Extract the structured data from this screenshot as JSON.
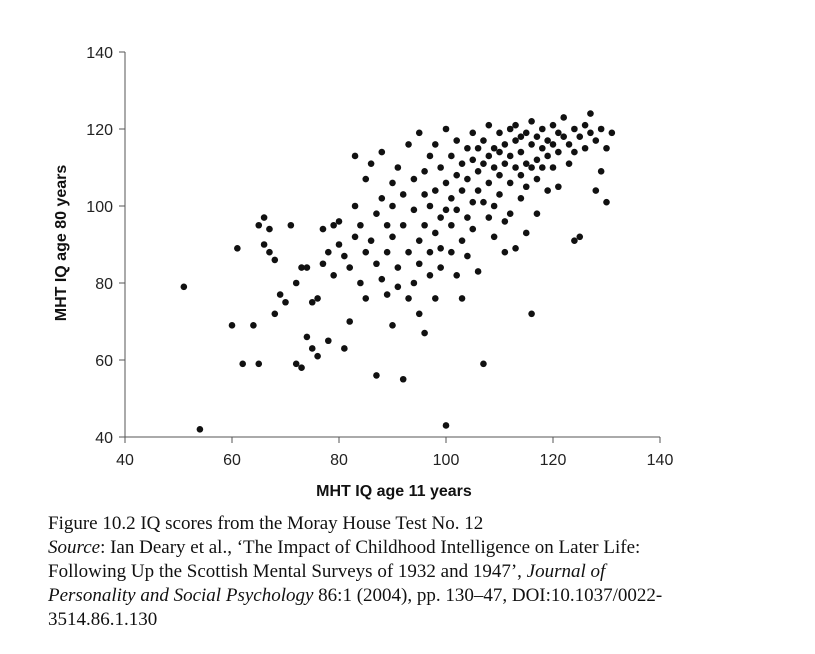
{
  "chart_data": {
    "type": "scatter",
    "xlabel": "MHT IQ age 11 years",
    "ylabel": "MHT IQ age 80 years",
    "xlim": [
      40,
      140
    ],
    "ylim": [
      40,
      140
    ],
    "xticks": [
      40,
      60,
      80,
      100,
      120,
      140
    ],
    "yticks": [
      40,
      60,
      80,
      100,
      120,
      140
    ],
    "grid": false,
    "points": [
      [
        51,
        79
      ],
      [
        54,
        42
      ],
      [
        60,
        69
      ],
      [
        61,
        89
      ],
      [
        62,
        59
      ],
      [
        64,
        69
      ],
      [
        65,
        59
      ],
      [
        65,
        95
      ],
      [
        66,
        97
      ],
      [
        66,
        90
      ],
      [
        67,
        88
      ],
      [
        67,
        94
      ],
      [
        68,
        86
      ],
      [
        68,
        72
      ],
      [
        69,
        77
      ],
      [
        70,
        75
      ],
      [
        71,
        95
      ],
      [
        72,
        80
      ],
      [
        72,
        59
      ],
      [
        73,
        58
      ],
      [
        73,
        84
      ],
      [
        74,
        84
      ],
      [
        74,
        66
      ],
      [
        75,
        63
      ],
      [
        75,
        75
      ],
      [
        76,
        61
      ],
      [
        76,
        76
      ],
      [
        77,
        85
      ],
      [
        77,
        94
      ],
      [
        78,
        65
      ],
      [
        78,
        88
      ],
      [
        79,
        82
      ],
      [
        79,
        95
      ],
      [
        80,
        90
      ],
      [
        80,
        96
      ],
      [
        81,
        87
      ],
      [
        81,
        63
      ],
      [
        82,
        84
      ],
      [
        82,
        70
      ],
      [
        83,
        113
      ],
      [
        83,
        100
      ],
      [
        83,
        92
      ],
      [
        84,
        95
      ],
      [
        84,
        80
      ],
      [
        85,
        76
      ],
      [
        85,
        107
      ],
      [
        85,
        88
      ],
      [
        86,
        91
      ],
      [
        86,
        111
      ],
      [
        87,
        98
      ],
      [
        87,
        85
      ],
      [
        87,
        56
      ],
      [
        88,
        81
      ],
      [
        88,
        114
      ],
      [
        88,
        102
      ],
      [
        89,
        95
      ],
      [
        89,
        77
      ],
      [
        89,
        88
      ],
      [
        90,
        106
      ],
      [
        90,
        92
      ],
      [
        90,
        69
      ],
      [
        90,
        100
      ],
      [
        91,
        84
      ],
      [
        91,
        79
      ],
      [
        91,
        110
      ],
      [
        92,
        95
      ],
      [
        92,
        103
      ],
      [
        92,
        55
      ],
      [
        93,
        88
      ],
      [
        93,
        76
      ],
      [
        93,
        116
      ],
      [
        94,
        107
      ],
      [
        94,
        99
      ],
      [
        94,
        80
      ],
      [
        95,
        91
      ],
      [
        95,
        85
      ],
      [
        95,
        72
      ],
      [
        95,
        119
      ],
      [
        96,
        109
      ],
      [
        96,
        95
      ],
      [
        96,
        103
      ],
      [
        96,
        67
      ],
      [
        97,
        88
      ],
      [
        97,
        82
      ],
      [
        97,
        113
      ],
      [
        97,
        100
      ],
      [
        98,
        104
      ],
      [
        98,
        93
      ],
      [
        98,
        76
      ],
      [
        98,
        116
      ],
      [
        99,
        110
      ],
      [
        99,
        97
      ],
      [
        99,
        89
      ],
      [
        99,
        84
      ],
      [
        100,
        106
      ],
      [
        100,
        99
      ],
      [
        100,
        43
      ],
      [
        100,
        120
      ],
      [
        101,
        113
      ],
      [
        101,
        102
      ],
      [
        101,
        95
      ],
      [
        101,
        88
      ],
      [
        102,
        108
      ],
      [
        102,
        117
      ],
      [
        102,
        99
      ],
      [
        102,
        82
      ],
      [
        103,
        111
      ],
      [
        103,
        104
      ],
      [
        103,
        91
      ],
      [
        103,
        76
      ],
      [
        104,
        115
      ],
      [
        104,
        107
      ],
      [
        104,
        97
      ],
      [
        104,
        87
      ],
      [
        105,
        112
      ],
      [
        105,
        101
      ],
      [
        105,
        119
      ],
      [
        105,
        94
      ],
      [
        106,
        109
      ],
      [
        106,
        104
      ],
      [
        106,
        115
      ],
      [
        106,
        83
      ],
      [
        107,
        117
      ],
      [
        107,
        111
      ],
      [
        107,
        101
      ],
      [
        107,
        59
      ],
      [
        108,
        113
      ],
      [
        108,
        106
      ],
      [
        108,
        97
      ],
      [
        108,
        121
      ],
      [
        109,
        110
      ],
      [
        109,
        115
      ],
      [
        109,
        100
      ],
      [
        109,
        92
      ],
      [
        110,
        114
      ],
      [
        110,
        108
      ],
      [
        110,
        119
      ],
      [
        110,
        103
      ],
      [
        111,
        116
      ],
      [
        111,
        111
      ],
      [
        111,
        96
      ],
      [
        111,
        88
      ],
      [
        112,
        113
      ],
      [
        112,
        120
      ],
      [
        112,
        106
      ],
      [
        112,
        98
      ],
      [
        113,
        117
      ],
      [
        113,
        110
      ],
      [
        113,
        121
      ],
      [
        113,
        89
      ],
      [
        114,
        114
      ],
      [
        114,
        108
      ],
      [
        114,
        102
      ],
      [
        114,
        118
      ],
      [
        115,
        119
      ],
      [
        115,
        111
      ],
      [
        115,
        105
      ],
      [
        115,
        93
      ],
      [
        116,
        116
      ],
      [
        116,
        122
      ],
      [
        116,
        110
      ],
      [
        116,
        72
      ],
      [
        117,
        118
      ],
      [
        117,
        112
      ],
      [
        117,
        107
      ],
      [
        117,
        98
      ],
      [
        118,
        115
      ],
      [
        118,
        120
      ],
      [
        118,
        110
      ],
      [
        119,
        117
      ],
      [
        119,
        113
      ],
      [
        119,
        104
      ],
      [
        120,
        121
      ],
      [
        120,
        116
      ],
      [
        120,
        110
      ],
      [
        121,
        119
      ],
      [
        121,
        114
      ],
      [
        121,
        105
      ],
      [
        122,
        118
      ],
      [
        122,
        123
      ],
      [
        123,
        116
      ],
      [
        123,
        111
      ],
      [
        124,
        120
      ],
      [
        124,
        114
      ],
      [
        124,
        91
      ],
      [
        125,
        118
      ],
      [
        125,
        92
      ],
      [
        126,
        121
      ],
      [
        126,
        115
      ],
      [
        127,
        119
      ],
      [
        127,
        124
      ],
      [
        128,
        117
      ],
      [
        128,
        104
      ],
      [
        129,
        120
      ],
      [
        129,
        109
      ],
      [
        130,
        115
      ],
      [
        130,
        101
      ],
      [
        131,
        119
      ]
    ]
  },
  "caption": {
    "line1": "Figure 10.2 IQ scores from the Moray House Test No. 12",
    "source_label": "Source",
    "line2_rest": ": Ian Deary et al., ‘The Impact of Childhood Intelligence on Later Life:",
    "line3_a": "Following Up the Scottish Mental Surveys of 1932 and 1947’, ",
    "journal_a": "Journal of",
    "journal_b": "Personality and Social Psychology",
    "line4_rest": " 86:1 (2004), pp. 130–47, DOI:10.1037/0022-",
    "line5": "3514.86.1.130"
  }
}
